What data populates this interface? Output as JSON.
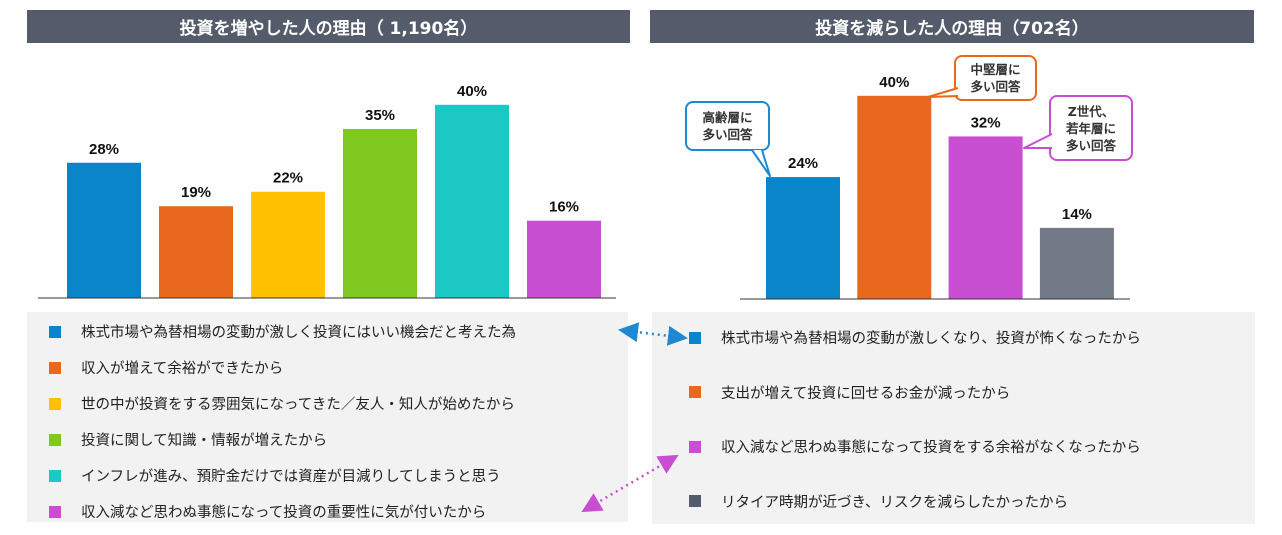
{
  "colors": {
    "title_bg": "#545b6b",
    "blue": "#0a85c9",
    "orange": "#e8691e",
    "yellow": "#ffc000",
    "green": "#7ec820",
    "teal": "#1bc8c4",
    "purple": "#c84fd2",
    "gray": "#727a88",
    "connector": "#1e88d0",
    "connector2": "#c84fd2"
  },
  "chart_data": [
    {
      "type": "bar",
      "title": "投資を増やした人の理由（ 1,190名）",
      "categories": [
        "株式市場や為替相場の変動が激しく投資にはいい機会だと考えた為",
        "収入が増えて余裕ができたから",
        "世の中が投資をする雰囲気になってきた／友人・知人が始めたから",
        "投資に関して知識・情報が増えたから",
        "インフレが進み、預貯金だけでは資産が目減りしてしまうと思う",
        "収入減など思わぬ事態になって投資の重要性に気が付いたから"
      ],
      "values": [
        28,
        19,
        22,
        35,
        40,
        16
      ],
      "labels": [
        "28%",
        "19%",
        "22%",
        "35%",
        "40%",
        "16%"
      ],
      "colors": [
        "#0a85c9",
        "#e8691e",
        "#ffc000",
        "#7ec820",
        "#1bc8c4",
        "#c84fd2"
      ],
      "ylim": [
        0,
        45
      ]
    },
    {
      "type": "bar",
      "title": "投資を減らした人の理由（702名）",
      "categories": [
        "株式市場や為替相場の変動が激しくなり、投資が怖くなったから",
        "支出が増えて投資に回せるお金が減ったから",
        "収入減など思わぬ事態になって投資をする余裕がなくなったから",
        "リタイア時期が近づき、リスクを減らしたかったから"
      ],
      "values": [
        24,
        40,
        32,
        14
      ],
      "labels": [
        "24%",
        "40%",
        "32%",
        "14%"
      ],
      "colors": [
        "#0a85c9",
        "#e8691e",
        "#c84fd2",
        "#727a88"
      ],
      "ylim": [
        0,
        45
      ],
      "annotations": [
        "高齢層に\n多い回答",
        "中堅層に\n多い回答",
        "Z世代、\n若年層に\n多い回答"
      ]
    }
  ],
  "legend_left": [
    {
      "label": "株式市場や為替相場の変動が激しく投資にはいい機会だと考えた為",
      "color": "#0a85c9"
    },
    {
      "label": "収入が増えて余裕ができたから",
      "color": "#e8691e"
    },
    {
      "label": "世の中が投資をする雰囲気になってきた／友人・知人が始めたから",
      "color": "#ffc000"
    },
    {
      "label": "投資に関して知識・情報が増えたから",
      "color": "#7ec820"
    },
    {
      "label": "インフレが進み、預貯金だけでは資産が目減りしてしまうと思う",
      "color": "#1bc8c4"
    },
    {
      "label": "収入減など思わぬ事態になって投資の重要性に気が付いたから",
      "color": "#c84fd2"
    }
  ],
  "legend_right": [
    {
      "label": "株式市場や為替相場の変動が激しくなり、投資が怖くなったから",
      "color": "#0a85c9"
    },
    {
      "label": "支出が増えて投資に回せるお金が減ったから",
      "color": "#e8691e"
    },
    {
      "label": "収入減など思わぬ事態になって投資をする余裕がなくなったから",
      "color": "#c84fd2"
    },
    {
      "label": "リタイア時期が近づき、リスクを減らしたかったから",
      "color": "#545b6b"
    }
  ],
  "callouts": [
    {
      "text": "高齢層に\n多い回答",
      "color": "#1e88d0"
    },
    {
      "text": "中堅層に\n多い回答",
      "color": "#e8691e"
    },
    {
      "text": "Z世代、\n若年層に\n多い回答",
      "color": "#c84fd2"
    }
  ]
}
